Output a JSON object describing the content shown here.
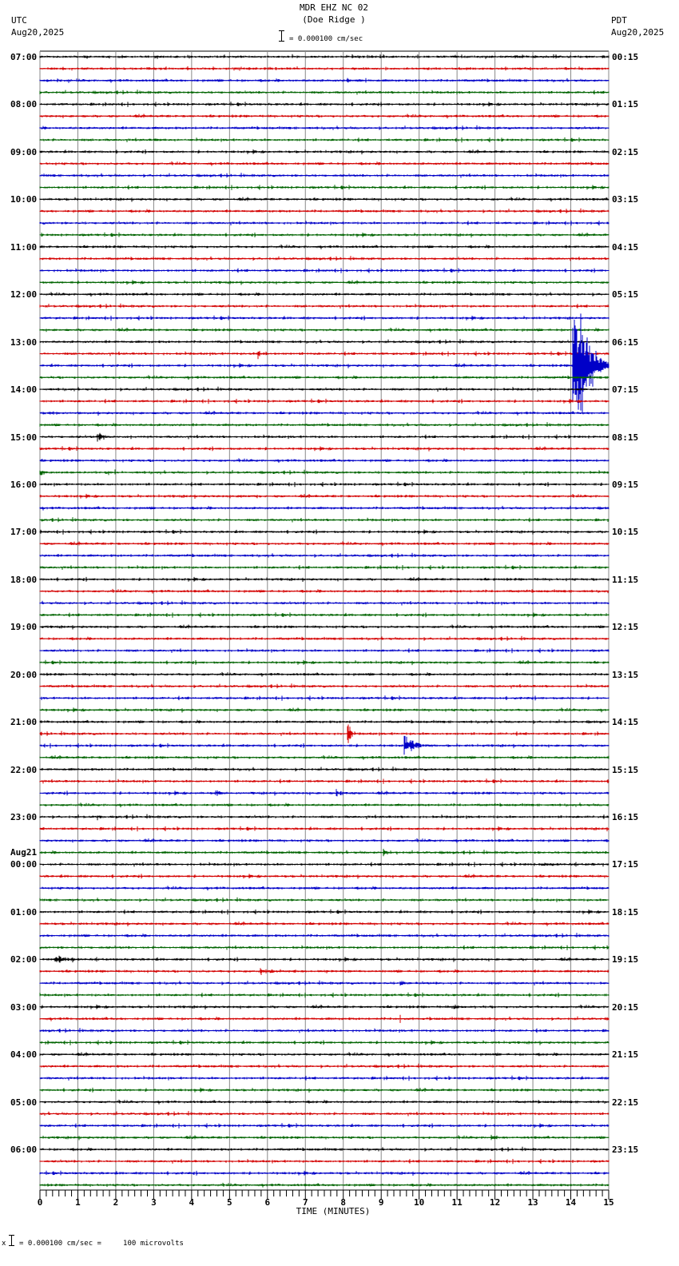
{
  "header": {
    "station": "MDR EHZ NC 02",
    "site": "(Doe Ridge )",
    "scale_text": "= 0.000100 cm/sec",
    "left_tz": "UTC",
    "left_date": "Aug20,2025",
    "right_tz": "PDT",
    "right_date": "Aug20,2025"
  },
  "footer": {
    "xlabel": "TIME (MINUTES)",
    "scale_prefix": "x",
    "scale_text": "= 0.000100 cm/sec =     100 microvolts"
  },
  "chart_data": {
    "type": "line",
    "title": "MDR EHZ NC 02 (Doe Ridge )",
    "subtitle": "= 0.000100 cm/sec",
    "xlabel": "TIME (MINUTES)",
    "ylabel": "",
    "xlim": [
      0,
      15
    ],
    "x_ticks": [
      0,
      1,
      2,
      3,
      4,
      5,
      6,
      7,
      8,
      9,
      10,
      11,
      12,
      13,
      14,
      15
    ],
    "grid": true,
    "legend": "none",
    "trace_colors": [
      "#000000",
      "#d40000",
      "#0000c8",
      "#006400"
    ],
    "traces_per_hour": 4,
    "trace_count": 96,
    "left_labels": [
      {
        "row": 0,
        "text": "07:00"
      },
      {
        "row": 4,
        "text": "08:00"
      },
      {
        "row": 8,
        "text": "09:00"
      },
      {
        "row": 12,
        "text": "10:00"
      },
      {
        "row": 16,
        "text": "11:00"
      },
      {
        "row": 20,
        "text": "12:00"
      },
      {
        "row": 24,
        "text": "13:00"
      },
      {
        "row": 28,
        "text": "14:00"
      },
      {
        "row": 32,
        "text": "15:00"
      },
      {
        "row": 36,
        "text": "16:00"
      },
      {
        "row": 40,
        "text": "17:00"
      },
      {
        "row": 44,
        "text": "18:00"
      },
      {
        "row": 48,
        "text": "19:00"
      },
      {
        "row": 52,
        "text": "20:00"
      },
      {
        "row": 56,
        "text": "21:00"
      },
      {
        "row": 60,
        "text": "22:00"
      },
      {
        "row": 64,
        "text": "23:00"
      },
      {
        "row": 68,
        "text": "00:00",
        "date": "Aug21"
      },
      {
        "row": 72,
        "text": "01:00"
      },
      {
        "row": 76,
        "text": "02:00"
      },
      {
        "row": 80,
        "text": "03:00"
      },
      {
        "row": 84,
        "text": "04:00"
      },
      {
        "row": 88,
        "text": "05:00"
      },
      {
        "row": 92,
        "text": "06:00"
      }
    ],
    "right_labels": [
      {
        "row": 0,
        "text": "00:15"
      },
      {
        "row": 4,
        "text": "01:15"
      },
      {
        "row": 8,
        "text": "02:15"
      },
      {
        "row": 12,
        "text": "03:15"
      },
      {
        "row": 16,
        "text": "04:15"
      },
      {
        "row": 20,
        "text": "05:15"
      },
      {
        "row": 24,
        "text": "06:15"
      },
      {
        "row": 28,
        "text": "07:15"
      },
      {
        "row": 32,
        "text": "08:15"
      },
      {
        "row": 36,
        "text": "09:15"
      },
      {
        "row": 40,
        "text": "10:15"
      },
      {
        "row": 44,
        "text": "11:15"
      },
      {
        "row": 48,
        "text": "12:15"
      },
      {
        "row": 52,
        "text": "13:15"
      },
      {
        "row": 56,
        "text": "14:15"
      },
      {
        "row": 60,
        "text": "15:15"
      },
      {
        "row": 64,
        "text": "16:15"
      },
      {
        "row": 68,
        "text": "17:15"
      },
      {
        "row": 72,
        "text": "18:15"
      },
      {
        "row": 76,
        "text": "19:15"
      },
      {
        "row": 80,
        "text": "20:15"
      },
      {
        "row": 84,
        "text": "21:15"
      },
      {
        "row": 88,
        "text": "22:15"
      },
      {
        "row": 92,
        "text": "23:15"
      }
    ],
    "events": [
      {
        "row": 2,
        "minute": 8.1,
        "duration": 0.3,
        "amp": 4
      },
      {
        "row": 7,
        "minute": 3.0,
        "duration": 0.6,
        "amp": 3
      },
      {
        "row": 25,
        "minute": 5.75,
        "duration": 0.2,
        "amp": 8
      },
      {
        "row": 30,
        "minute": 0.2,
        "duration": 1.2,
        "amp": 3
      },
      {
        "row": 32,
        "minute": 1.5,
        "duration": 0.9,
        "amp": 6
      },
      {
        "row": 35,
        "minute": 0.0,
        "duration": 0.5,
        "amp": 5
      },
      {
        "row": 26,
        "minute": 14.05,
        "duration": 0.95,
        "amp": 120,
        "note": "large earthquake, blue trace, peak clipping ~14.1-14.3 min"
      },
      {
        "row": 37,
        "minute": 5.3,
        "duration": 0.2,
        "amp": 3
      },
      {
        "row": 57,
        "minute": 8.1,
        "duration": 0.2,
        "amp": 30
      },
      {
        "row": 58,
        "minute": 9.6,
        "duration": 0.8,
        "amp": 14
      },
      {
        "row": 62,
        "minute": 4.6,
        "duration": 1.0,
        "amp": 4
      },
      {
        "row": 62,
        "minute": 7.8,
        "duration": 0.4,
        "amp": 7
      },
      {
        "row": 64,
        "minute": 1.5,
        "duration": 0.4,
        "amp": 5
      },
      {
        "row": 67,
        "minute": 9.05,
        "duration": 0.2,
        "amp": 9
      },
      {
        "row": 68,
        "minute": 13.2,
        "duration": 1.8,
        "amp": 3
      },
      {
        "row": 76,
        "minute": 0.4,
        "duration": 1.4,
        "amp": 5
      },
      {
        "row": 77,
        "minute": 5.8,
        "duration": 1.6,
        "amp": 4
      },
      {
        "row": 78,
        "minute": 9.5,
        "duration": 0.5,
        "amp": 4
      },
      {
        "row": 80,
        "minute": 10.9,
        "duration": 0.4,
        "amp": 6
      },
      {
        "row": 81,
        "minute": 9.5,
        "duration": 0.1,
        "amp": 5
      },
      {
        "row": 84,
        "minute": 1.25,
        "duration": 0.1,
        "amp": 4
      },
      {
        "row": 91,
        "minute": 11.9,
        "duration": 0.6,
        "amp": 3
      }
    ]
  }
}
